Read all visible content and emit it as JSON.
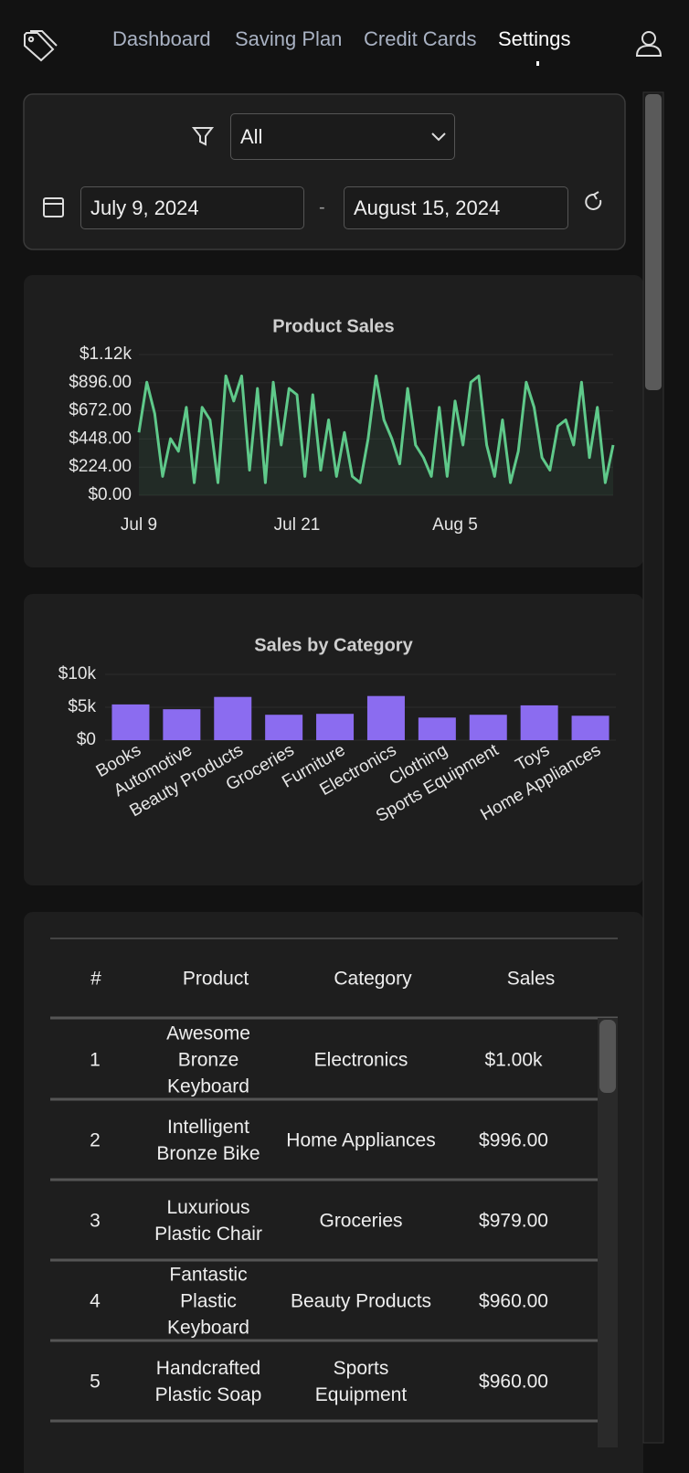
{
  "nav": {
    "links": [
      "Dashboard",
      "Saving Plan",
      "Credit Cards",
      "Settings"
    ]
  },
  "filters": {
    "category": "All",
    "start_date": "July 9, 2024",
    "separator": "-",
    "end_date": "August 15, 2024"
  },
  "chart_data": [
    {
      "type": "line",
      "title": "Product Sales",
      "categories": [
        "Jul 9",
        null,
        null,
        null,
        null,
        null,
        null,
        null,
        null,
        null,
        null,
        null,
        null,
        null,
        null,
        null,
        null,
        null,
        null,
        null,
        "Jul 21",
        null,
        null,
        null,
        null,
        null,
        null,
        null,
        null,
        null,
        null,
        null,
        null,
        null,
        null,
        null,
        null,
        null,
        null,
        null,
        "Aug 5",
        null,
        null,
        null,
        null,
        null,
        null,
        null,
        null,
        null,
        null,
        null,
        null,
        null,
        null,
        null,
        null,
        null,
        null,
        null,
        null
      ],
      "values": [
        500,
        900,
        650,
        150,
        450,
        350,
        700,
        100,
        700,
        600,
        100,
        950,
        750,
        950,
        200,
        850,
        100,
        900,
        400,
        850,
        800,
        150,
        800,
        200,
        600,
        150,
        500,
        150,
        100,
        450,
        950,
        600,
        450,
        250,
        850,
        400,
        300,
        150,
        700,
        150,
        750,
        400,
        900,
        950,
        400,
        150,
        600,
        100,
        350,
        900,
        700,
        300,
        200,
        550,
        600,
        400,
        900,
        300,
        700,
        100,
        400
      ],
      "color": "#5fc98a",
      "ylim": [
        0,
        1120
      ],
      "yticks": [
        {
          "value": 0,
          "label": "$0.00"
        },
        {
          "value": 224,
          "label": "$224.00"
        },
        {
          "value": 448,
          "label": "$448.00"
        },
        {
          "value": 672,
          "label": "$672.00"
        },
        {
          "value": 896,
          "label": "$896.00"
        },
        {
          "value": 1120,
          "label": "$1.12k"
        }
      ],
      "grid": true
    },
    {
      "type": "bar",
      "title": "Sales by Category",
      "categories": [
        "Books",
        "Automotive",
        "Beauty Products",
        "Groceries",
        "Furniture",
        "Electronics",
        "Clothing",
        "Sports Equipment",
        "Toys",
        "Home Appliances"
      ],
      "values": [
        5430,
        4700,
        6570,
        3860,
        4000,
        6710,
        3430,
        3860,
        5290,
        3710
      ],
      "color": "#8b6cf0",
      "ylim": [
        0,
        10000
      ],
      "yticks": [
        {
          "value": 0,
          "label": "$0"
        },
        {
          "value": 5000,
          "label": "$5k"
        },
        {
          "value": 10000,
          "label": "$10k"
        }
      ],
      "grid": true
    }
  ],
  "table": {
    "columns": [
      "#",
      "Product",
      "Category",
      "Sales"
    ],
    "rows": [
      [
        1,
        "Awesome Bronze Keyboard",
        "Electronics",
        "$1.00k"
      ],
      [
        2,
        "Intelligent Bronze Bike",
        "Home Appliances",
        "$996.00"
      ],
      [
        3,
        "Luxurious Plastic Chair",
        "Groceries",
        "$979.00"
      ],
      [
        4,
        "Fantastic Plastic Keyboard",
        "Beauty Products",
        "$960.00"
      ],
      [
        5,
        "Handcrafted Plastic Soap",
        "Sports Equipment",
        "$960.00"
      ]
    ]
  }
}
